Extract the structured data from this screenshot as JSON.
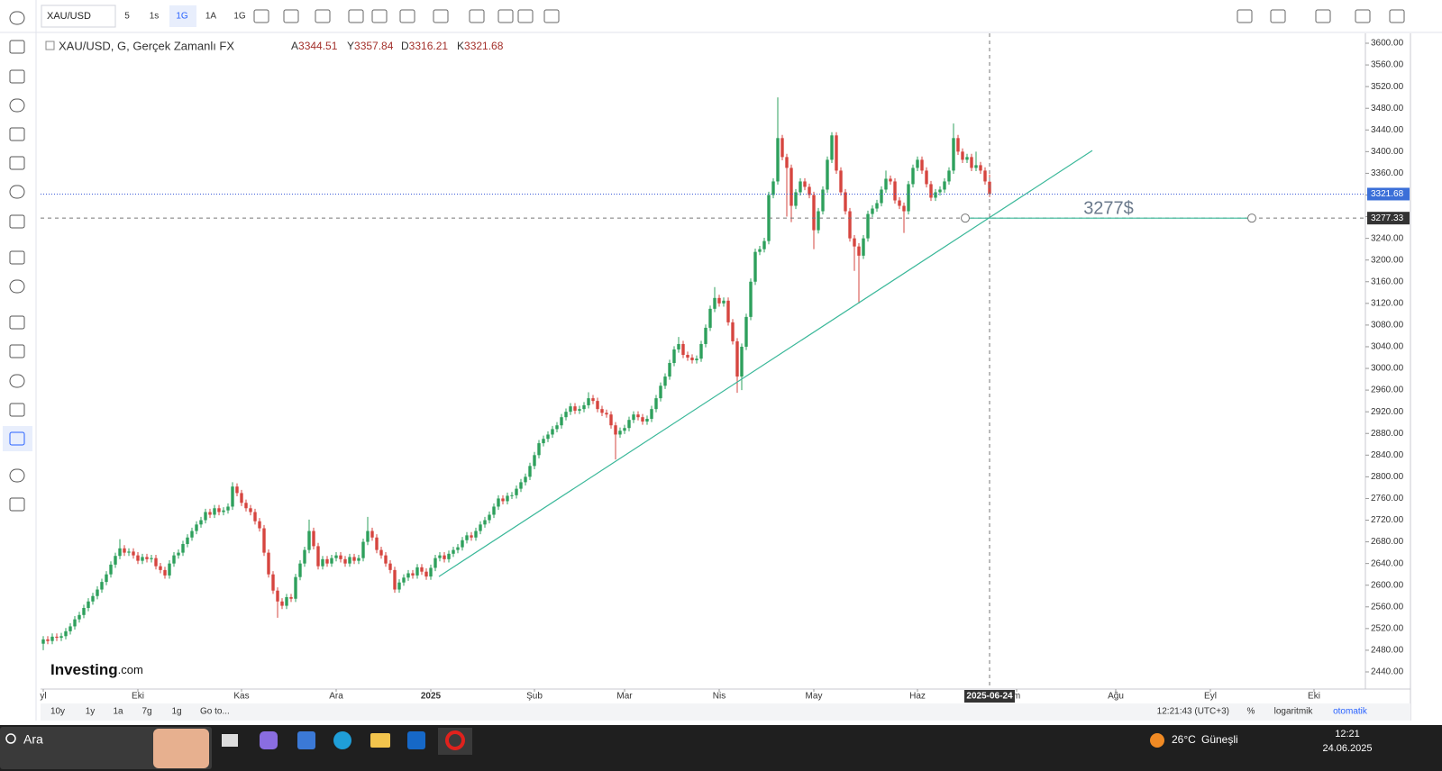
{
  "toolbar": {
    "symbol": "XAU/USD",
    "intervals": [
      "5",
      "1s",
      "1G",
      "1A",
      "1G"
    ]
  },
  "chart_data": {
    "type": "candlestick",
    "title": "XAU/USD, G, Gerçek Zamanlı FX",
    "ohlc_labels": [
      "A",
      "Y",
      "D",
      "K"
    ],
    "up_color": "#2ea05c",
    "down_color": "#d6453f",
    "grid": false,
    "open": [
      2492,
      2500,
      2497,
      2505,
      2503,
      2506,
      2515,
      2524,
      2537,
      2545,
      2558,
      2570,
      2580,
      2592,
      2606,
      2620,
      2638,
      2654,
      2668,
      2660,
      2662,
      2655,
      2645,
      2652,
      2648,
      2650,
      2635,
      2628,
      2618,
      2640,
      2655,
      2660,
      2676,
      2688,
      2700,
      2712,
      2720,
      2735,
      2730,
      2742,
      2735,
      2738,
      2745,
      2782,
      2770,
      2752,
      2742,
      2735,
      2718,
      2705,
      2660,
      2620,
      2590,
      2570,
      2562,
      2578,
      2575,
      2615,
      2640,
      2665,
      2700,
      2672,
      2635,
      2648,
      2640,
      2650,
      2655,
      2648,
      2640,
      2652,
      2645,
      2650,
      2680,
      2700,
      2688,
      2665,
      2655,
      2640,
      2628,
      2592,
      2605,
      2614,
      2622,
      2618,
      2633,
      2625,
      2616,
      2632,
      2650,
      2655,
      2648,
      2658,
      2665,
      2670,
      2683,
      2692,
      2688,
      2700,
      2712,
      2720,
      2730,
      2745,
      2760,
      2755,
      2765,
      2766,
      2778,
      2790,
      2800,
      2820,
      2840,
      2862,
      2870,
      2878,
      2888,
      2895,
      2910,
      2920,
      2930,
      2922,
      2925,
      2932,
      2945,
      2940,
      2925,
      2918,
      2915,
      2895,
      2878,
      2885,
      2890,
      2905,
      2915,
      2910,
      2902,
      2907,
      2925,
      2945,
      2968,
      2985,
      3010,
      3035,
      3045,
      3025,
      3020,
      3015,
      3018,
      3045,
      3075,
      3110,
      3130,
      3120,
      3125,
      3085,
      3050,
      2985,
      3040,
      3095,
      3160,
      3215,
      3220,
      3235,
      3320,
      3345,
      3425,
      3390,
      3370,
      3300,
      3325,
      3345,
      3335,
      3320,
      3255,
      3290,
      3330,
      3385,
      3430,
      3365,
      3325,
      3290,
      3240,
      3225,
      3208,
      3240,
      3285,
      3295,
      3305,
      3330,
      3350,
      3345,
      3310,
      3300,
      3290,
      3340,
      3370,
      3385,
      3365,
      3340,
      3315,
      3325,
      3330,
      3345,
      3365,
      3425,
      3400,
      3385,
      3390,
      3370,
      3375,
      3365,
      3344.51
    ],
    "high": [
      2506,
      2506,
      2511,
      2511,
      2512,
      2521,
      2530,
      2543,
      2551,
      2564,
      2576,
      2586,
      2598,
      2612,
      2626,
      2644,
      2660,
      2685,
      2674,
      2668,
      2668,
      2661,
      2658,
      2658,
      2656,
      2656,
      2641,
      2634,
      2646,
      2661,
      2666,
      2682,
      2694,
      2706,
      2718,
      2726,
      2741,
      2741,
      2748,
      2748,
      2744,
      2751,
      2790,
      2788,
      2776,
      2758,
      2748,
      2741,
      2724,
      2711,
      2666,
      2626,
      2596,
      2576,
      2584,
      2584,
      2621,
      2646,
      2671,
      2721,
      2706,
      2678,
      2654,
      2654,
      2656,
      2661,
      2661,
      2654,
      2658,
      2658,
      2656,
      2686,
      2726,
      2706,
      2694,
      2671,
      2661,
      2646,
      2634,
      2611,
      2620,
      2628,
      2628,
      2639,
      2639,
      2631,
      2638,
      2656,
      2661,
      2661,
      2664,
      2671,
      2676,
      2689,
      2698,
      2698,
      2706,
      2718,
      2726,
      2736,
      2751,
      2766,
      2766,
      2771,
      2772,
      2784,
      2796,
      2806,
      2826,
      2846,
      2868,
      2876,
      2884,
      2894,
      2901,
      2916,
      2926,
      2936,
      2936,
      2931,
      2938,
      2956,
      2951,
      2946,
      2931,
      2924,
      2921,
      2901,
      2891,
      2896,
      2911,
      2921,
      2921,
      2916,
      2913,
      2931,
      2951,
      2974,
      2991,
      3016,
      3041,
      3058,
      3051,
      3031,
      3026,
      3024,
      3051,
      3081,
      3116,
      3150,
      3136,
      3131,
      3131,
      3091,
      3056,
      3046,
      3101,
      3166,
      3221,
      3226,
      3241,
      3326,
      3351,
      3500,
      3431,
      3396,
      3376,
      3331,
      3351,
      3351,
      3341,
      3326,
      3296,
      3336,
      3391,
      3436,
      3436,
      3371,
      3331,
      3296,
      3246,
      3231,
      3246,
      3291,
      3301,
      3311,
      3336,
      3365,
      3356,
      3351,
      3316,
      3306,
      3346,
      3376,
      3391,
      3391,
      3371,
      3346,
      3331,
      3336,
      3351,
      3371,
      3452,
      3431,
      3406,
      3396,
      3396,
      3400,
      3381,
      3371,
      3357.84
    ],
    "low": [
      2480,
      2491,
      2491,
      2497,
      2497,
      2500,
      2509,
      2518,
      2531,
      2539,
      2552,
      2564,
      2574,
      2586,
      2600,
      2614,
      2632,
      2648,
      2654,
      2654,
      2649,
      2639,
      2639,
      2642,
      2642,
      2629,
      2622,
      2612,
      2612,
      2634,
      2649,
      2654,
      2670,
      2682,
      2694,
      2706,
      2714,
      2724,
      2724,
      2729,
      2729,
      2732,
      2739,
      2764,
      2746,
      2736,
      2729,
      2712,
      2699,
      2654,
      2614,
      2584,
      2540,
      2556,
      2556,
      2569,
      2569,
      2609,
      2634,
      2659,
      2666,
      2629,
      2629,
      2634,
      2634,
      2644,
      2642,
      2634,
      2634,
      2639,
      2639,
      2644,
      2674,
      2682,
      2659,
      2649,
      2634,
      2622,
      2586,
      2586,
      2599,
      2608,
      2612,
      2612,
      2619,
      2610,
      2610,
      2626,
      2644,
      2642,
      2642,
      2652,
      2659,
      2664,
      2677,
      2682,
      2682,
      2694,
      2706,
      2714,
      2724,
      2739,
      2749,
      2749,
      2759,
      2760,
      2772,
      2784,
      2794,
      2814,
      2834,
      2856,
      2864,
      2872,
      2882,
      2889,
      2904,
      2914,
      2916,
      2916,
      2919,
      2926,
      2934,
      2919,
      2912,
      2909,
      2889,
      2832,
      2872,
      2879,
      2884,
      2899,
      2904,
      2896,
      2896,
      2901,
      2919,
      2939,
      2962,
      2979,
      3004,
      3029,
      3019,
      3014,
      3009,
      3009,
      3012,
      3039,
      3069,
      3104,
      3114,
      3114,
      3079,
      3044,
      2955,
      2960,
      3034,
      3089,
      3154,
      3209,
      3214,
      3229,
      3314,
      3339,
      3384,
      3280,
      3270,
      3294,
      3319,
      3329,
      3314,
      3220,
      3249,
      3284,
      3324,
      3379,
      3359,
      3319,
      3284,
      3234,
      3180,
      3120,
      3202,
      3234,
      3279,
      3289,
      3299,
      3324,
      3339,
      3304,
      3294,
      3250,
      3284,
      3334,
      3364,
      3359,
      3334,
      3309,
      3309,
      3319,
      3324,
      3339,
      3359,
      3394,
      3379,
      3379,
      3364,
      3364,
      3359,
      3339,
      3316.21
    ],
    "close": [
      2500,
      2497,
      2505,
      2503,
      2506,
      2515,
      2524,
      2537,
      2545,
      2558,
      2570,
      2580,
      2592,
      2606,
      2620,
      2638,
      2654,
      2668,
      2660,
      2662,
      2655,
      2645,
      2652,
      2648,
      2650,
      2635,
      2628,
      2618,
      2640,
      2655,
      2660,
      2676,
      2688,
      2700,
      2712,
      2720,
      2735,
      2730,
      2742,
      2735,
      2738,
      2745,
      2782,
      2770,
      2752,
      2742,
      2735,
      2718,
      2705,
      2660,
      2620,
      2590,
      2570,
      2562,
      2578,
      2575,
      2615,
      2640,
      2665,
      2700,
      2672,
      2635,
      2648,
      2640,
      2650,
      2655,
      2648,
      2640,
      2652,
      2645,
      2650,
      2680,
      2700,
      2688,
      2665,
      2655,
      2640,
      2628,
      2592,
      2605,
      2614,
      2622,
      2618,
      2633,
      2625,
      2616,
      2632,
      2650,
      2655,
      2648,
      2658,
      2665,
      2670,
      2683,
      2692,
      2688,
      2700,
      2712,
      2720,
      2730,
      2745,
      2760,
      2755,
      2765,
      2766,
      2778,
      2790,
      2800,
      2820,
      2840,
      2862,
      2870,
      2878,
      2888,
      2895,
      2910,
      2920,
      2930,
      2922,
      2925,
      2932,
      2945,
      2940,
      2925,
      2918,
      2915,
      2895,
      2878,
      2885,
      2890,
      2905,
      2915,
      2910,
      2902,
      2907,
      2925,
      2945,
      2968,
      2985,
      3010,
      3035,
      3045,
      3025,
      3020,
      3015,
      3018,
      3045,
      3075,
      3110,
      3130,
      3120,
      3125,
      3085,
      3050,
      2985,
      3040,
      3095,
      3160,
      3215,
      3220,
      3235,
      3320,
      3345,
      3425,
      3390,
      3370,
      3300,
      3325,
      3345,
      3335,
      3320,
      3255,
      3290,
      3330,
      3385,
      3430,
      3365,
      3325,
      3290,
      3240,
      3225,
      3208,
      3240,
      3285,
      3295,
      3305,
      3330,
      3350,
      3345,
      3310,
      3300,
      3290,
      3340,
      3370,
      3385,
      3365,
      3340,
      3315,
      3325,
      3330,
      3345,
      3365,
      3425,
      3400,
      3385,
      3390,
      3370,
      3375,
      3365,
      3345,
      3321.68
    ],
    "xlim": [
      -0.6,
      293.4
    ],
    "xticks": [
      {
        "value": 0,
        "label": "yl"
      },
      {
        "value": 21,
        "label": "Eki"
      },
      {
        "value": 44,
        "label": "Kas"
      },
      {
        "value": 65,
        "label": "Ara"
      },
      {
        "value": 86,
        "label": "2025"
      },
      {
        "value": 109,
        "label": "Şub"
      },
      {
        "value": 129,
        "label": "Mar"
      },
      {
        "value": 150,
        "label": "Nis"
      },
      {
        "value": 171,
        "label": "May"
      },
      {
        "value": 194,
        "label": "Haz"
      },
      {
        "value": 216,
        "label": "m"
      },
      {
        "value": 238,
        "label": "Ağu"
      },
      {
        "value": 259,
        "label": "Eyl"
      },
      {
        "value": 282,
        "label": "Eki"
      }
    ],
    "ylim": [
      2408.4,
      3618.3
    ],
    "yticks": [
      {
        "value": 2440,
        "label": "2440.00"
      },
      {
        "value": 2480,
        "label": "2480.00"
      },
      {
        "value": 2520,
        "label": "2520.00"
      },
      {
        "value": 2560,
        "label": "2560.00"
      },
      {
        "value": 2600,
        "label": "2600.00"
      },
      {
        "value": 2640,
        "label": "2640.00"
      },
      {
        "value": 2680,
        "label": "2680.00"
      },
      {
        "value": 2720,
        "label": "2720.00"
      },
      {
        "value": 2760,
        "label": "2760.00"
      },
      {
        "value": 2800,
        "label": "2800.00"
      },
      {
        "value": 2840,
        "label": "2840.00"
      },
      {
        "value": 2880,
        "label": "2880.00"
      },
      {
        "value": 2920,
        "label": "2920.00"
      },
      {
        "value": 2960,
        "label": "2960.00"
      },
      {
        "value": 3000,
        "label": "3000.00"
      },
      {
        "value": 3040,
        "label": "3040.00"
      },
      {
        "value": 3080,
        "label": "3080.00"
      },
      {
        "value": 3120,
        "label": "3120.00"
      },
      {
        "value": 3160,
        "label": "3160.00"
      },
      {
        "value": 3200,
        "label": "3200.00"
      },
      {
        "value": 3240,
        "label": "3240.00"
      },
      {
        "value": 3280,
        "label": "3280.00"
      },
      {
        "value": 3320,
        "label": "3320.00"
      },
      {
        "value": 3360,
        "label": "3360.00"
      },
      {
        "value": 3400,
        "label": "3400.00"
      },
      {
        "value": 3440,
        "label": "3440.00"
      },
      {
        "value": 3480,
        "label": "3480.00"
      },
      {
        "value": 3520,
        "label": "3520.00"
      },
      {
        "value": 3560,
        "label": "3560.00"
      },
      {
        "value": 3600,
        "label": "3600.00"
      }
    ],
    "price_line": 3321.68,
    "crosshair": {
      "x": 210,
      "y": 3277.33,
      "label": "2025-06-24"
    },
    "trendline": {
      "x": [
        87.8,
        232.8
      ],
      "y": [
        2616,
        3402
      ],
      "color": "#3bb89a"
    },
    "hline": {
      "x": [
        204.6,
        268.2
      ],
      "y": 3277.33,
      "label": "3277$",
      "color": "#3bb89a"
    },
    "logo": {
      "name": "Investing",
      "suffix": ".com"
    }
  },
  "bottom_bar": {
    "ranges": [
      "10y",
      "1y",
      "1a",
      "7g",
      "1g"
    ],
    "goto": "Go to...",
    "time": "12:21:43 (UTC+3)",
    "percent": "%",
    "log": "logaritmik",
    "auto": "otomatik"
  },
  "taskbar": {
    "search": "Ara",
    "temperature": "26°C",
    "weather": "Güneşli",
    "time": "12:21",
    "date": "24.06.2025"
  }
}
